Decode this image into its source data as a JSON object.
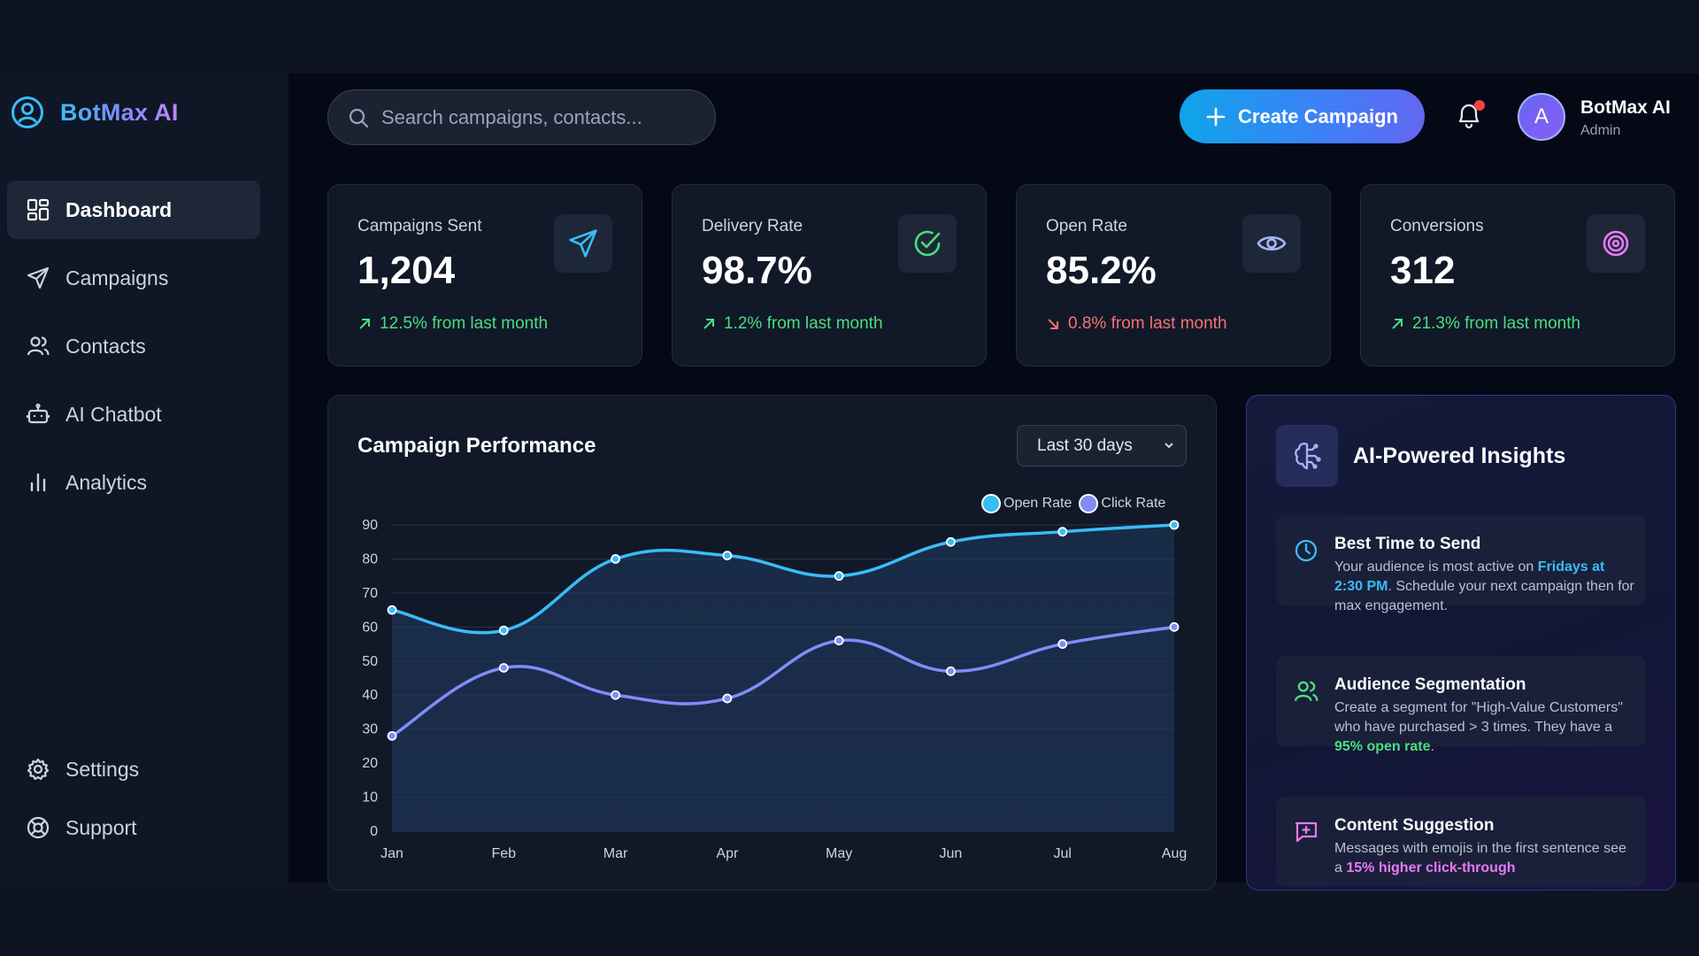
{
  "brand": {
    "name": "BotMax AI"
  },
  "sidebar": {
    "items": [
      {
        "label": "Dashboard",
        "icon": "dashboard-icon",
        "active": true
      },
      {
        "label": "Campaigns",
        "icon": "send-icon"
      },
      {
        "label": "Contacts",
        "icon": "users-icon"
      },
      {
        "label": "AI Chatbot",
        "icon": "bot-icon"
      },
      {
        "label": "Analytics",
        "icon": "bar-chart-icon"
      }
    ],
    "bottom": [
      {
        "label": "Settings",
        "icon": "gear-icon"
      },
      {
        "label": "Support",
        "icon": "lifebuoy-icon"
      }
    ]
  },
  "header": {
    "search_placeholder": "Search campaigns, contacts...",
    "create_label": "Create Campaign",
    "user": {
      "initial": "A",
      "name": "BotMax AI",
      "role": "Admin"
    }
  },
  "stats": [
    {
      "label": "Campaigns Sent",
      "value": "1,204",
      "change": "12.5% from last month",
      "trend": "up",
      "icon": "send-icon",
      "icon_color": "#38bdf8"
    },
    {
      "label": "Delivery Rate",
      "value": "98.7%",
      "change": "1.2% from last month",
      "trend": "up",
      "icon": "check-circle-icon",
      "icon_color": "#4ade80"
    },
    {
      "label": "Open Rate",
      "value": "85.2%",
      "change": "0.8% from last month",
      "trend": "down",
      "icon": "eye-icon",
      "icon_color": "#a5b4fc"
    },
    {
      "label": "Conversions",
      "value": "312",
      "change": "21.3% from last month",
      "trend": "up",
      "icon": "target-icon",
      "icon_color": "#e879f9"
    }
  ],
  "chart_panel": {
    "title": "Campaign Performance",
    "range": "Last 30 days"
  },
  "chart_data": {
    "type": "line",
    "title": "Campaign Performance",
    "categories": [
      "Jan",
      "Feb",
      "Mar",
      "Apr",
      "May",
      "Jun",
      "Jul",
      "Aug"
    ],
    "series": [
      {
        "name": "Open Rate",
        "color": "#38bdf8",
        "values": [
          65,
          59,
          80,
          81,
          75,
          85,
          88,
          90
        ]
      },
      {
        "name": "Click Rate",
        "color": "#818cf8",
        "values": [
          28,
          48,
          40,
          39,
          56,
          47,
          55,
          60
        ]
      }
    ],
    "ylim": [
      0,
      90
    ],
    "yticks": [
      0,
      10,
      20,
      30,
      40,
      50,
      60,
      70,
      80,
      90
    ],
    "grid": true,
    "legend": "top-right"
  },
  "insights": {
    "title": "AI-Powered Insights",
    "tips": [
      {
        "title": "Best Time to Send",
        "icon": "clock-icon",
        "parts": [
          "Your audience is most active on ",
          "Fridays at 2:30 PM",
          ". Schedule your next campaign then for max engagement."
        ]
      },
      {
        "title": "Audience Segmentation",
        "icon": "users-icon",
        "parts": [
          "Create a segment for \"High-Value Customers\" who have purchased > 3 times. They have a ",
          "95% open rate",
          "."
        ]
      },
      {
        "title": "Content Suggestion",
        "icon": "message-plus-icon",
        "parts": [
          "Messages with emojis in the first sentence see a ",
          "15% higher click-through",
          ""
        ]
      }
    ]
  }
}
